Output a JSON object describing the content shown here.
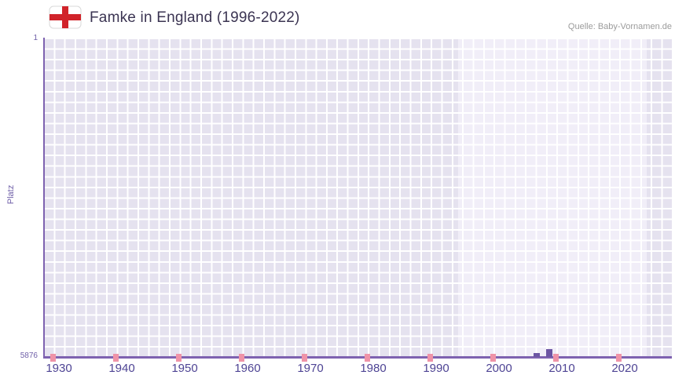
{
  "header": {
    "title": "Famke in England (1996-2022)",
    "source": "Quelle: Baby-Vornamen.de"
  },
  "chart_data": {
    "type": "bar",
    "title": "Famke in England (1996-2022)",
    "xlabel": "",
    "ylabel": "Platz",
    "y_axis": {
      "top_tick": "1",
      "bottom_tick": "5876",
      "best_rank": 1,
      "worst_rank": 5876,
      "inverted": true
    },
    "x_axis": {
      "start_year": 1927.5,
      "end_year": 2027.5,
      "tick_years": [
        1930,
        1940,
        1950,
        1960,
        1970,
        1980,
        1990,
        2000,
        2010,
        2020
      ]
    },
    "highlight_band": {
      "start_year": 1993.5,
      "end_year": 2023.5
    },
    "decade_marks_years": [
      1929,
      1939,
      1949,
      1959,
      1969,
      1979,
      1989,
      1999,
      2009,
      2019
    ],
    "bars": [
      {
        "year": 2006,
        "platz": 5805
      },
      {
        "year": 2008,
        "platz": 5730
      }
    ],
    "colors": {
      "plot_bg": "#e5e2ef",
      "band": "#f1eef8",
      "grid": "#ffffff",
      "axis": "#7e62b0",
      "bar": "#6c55a3",
      "decade_mark": "#ef93a8",
      "x_tick_text": "#4e4494",
      "y_tick_text": "#6f5fa8",
      "title_text": "#3b3452",
      "source_text": "#9b9b9b",
      "flag_cross": "#d1232a"
    }
  }
}
